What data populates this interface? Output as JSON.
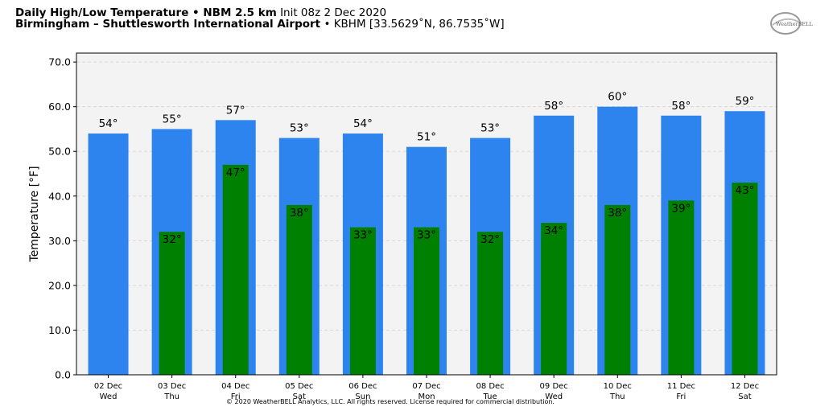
{
  "header": {
    "title_bold": "Daily High/Low Temperature • NBM 2.5 km",
    "title_rest": "Init 08z 2 Dec 2020",
    "location_bold": "Birmingham – Shuttlesworth International Airport",
    "location_rest": "• KBHM [33.5629˚N, 86.7535˚W]"
  },
  "logo": {
    "text": "WeatherBELL"
  },
  "footer": {
    "copyright": "© 2020 WeatherBELL Analytics, LLC. All rights reserved. License required for commercial distribution."
  },
  "colors": {
    "high": "#2e84ee",
    "low": "#008000",
    "plot_bg": "#f3f3f3",
    "grid": "#d9d9d9"
  },
  "chart_data": {
    "type": "bar",
    "ylabel": "Temperature [°F]",
    "ylim": [
      0,
      72
    ],
    "yticks": [
      "0.0",
      "10.0",
      "20.0",
      "30.0",
      "40.0",
      "50.0",
      "60.0",
      "70.0"
    ],
    "grid": true,
    "categories": [
      [
        "02 Dec",
        "Wed"
      ],
      [
        "03 Dec",
        "Thu"
      ],
      [
        "04 Dec",
        "Fri"
      ],
      [
        "05 Dec",
        "Sat"
      ],
      [
        "06 Dec",
        "Sun"
      ],
      [
        "07 Dec",
        "Mon"
      ],
      [
        "08 Dec",
        "Tue"
      ],
      [
        "09 Dec",
        "Wed"
      ],
      [
        "10 Dec",
        "Thu"
      ],
      [
        "11 Dec",
        "Fri"
      ],
      [
        "12 Dec",
        "Sat"
      ]
    ],
    "series": [
      {
        "values": [
          54,
          55,
          57,
          53,
          54,
          51,
          53,
          58,
          60,
          58,
          59
        ],
        "labels": [
          "54°",
          "55°",
          "57°",
          "53°",
          "54°",
          "51°",
          "53°",
          "58°",
          "60°",
          "58°",
          "59°"
        ]
      },
      {
        "values": [
          null,
          32,
          47,
          38,
          33,
          33,
          32,
          34,
          38,
          39,
          43
        ],
        "labels": [
          "",
          "32°",
          "47°",
          "38°",
          "33°",
          "33°",
          "32°",
          "34°",
          "38°",
          "39°",
          "43°"
        ]
      }
    ]
  }
}
